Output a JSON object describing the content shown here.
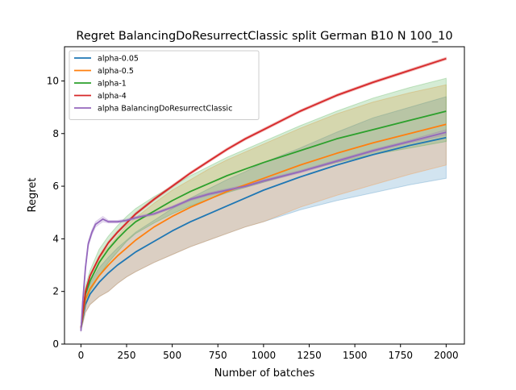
{
  "chart_data": {
    "type": "line",
    "title": "Regret BalancingDoResurrectClassic split German B10 N 100_10",
    "xlabel": "Number of batches",
    "ylabel": "Regret",
    "xlim": [
      -90,
      2100
    ],
    "ylim": [
      0,
      11.3
    ],
    "xticks": [
      0,
      250,
      500,
      750,
      1000,
      1250,
      1500,
      1750,
      2000
    ],
    "yticks": [
      0,
      2,
      4,
      6,
      8,
      10
    ],
    "grid": false,
    "legend_position": "top-left",
    "series": [
      {
        "name": "alpha-0.05",
        "color": "#1f77b4",
        "x": [
          0,
          25,
          50,
          100,
          150,
          200,
          250,
          300,
          400,
          500,
          600,
          700,
          800,
          900,
          1000,
          1200,
          1400,
          1600,
          1800,
          2000
        ],
        "y": [
          0.6,
          1.5,
          1.9,
          2.35,
          2.7,
          3.0,
          3.25,
          3.5,
          3.9,
          4.3,
          4.65,
          4.95,
          5.25,
          5.55,
          5.85,
          6.35,
          6.8,
          7.2,
          7.55,
          7.85
        ],
        "band_lower": [
          0.5,
          1.2,
          1.5,
          1.8,
          2.0,
          2.3,
          2.55,
          2.75,
          3.1,
          3.4,
          3.7,
          3.95,
          4.2,
          4.45,
          4.65,
          5.1,
          5.45,
          5.75,
          6.05,
          6.3
        ],
        "band_upper": [
          0.7,
          1.8,
          2.3,
          2.9,
          3.3,
          3.65,
          3.95,
          4.25,
          4.7,
          5.15,
          5.55,
          5.9,
          6.25,
          6.55,
          6.9,
          7.45,
          8.05,
          8.6,
          9.0,
          9.4
        ]
      },
      {
        "name": "alpha-0.5",
        "color": "#ff7f0e",
        "x": [
          0,
          25,
          50,
          100,
          150,
          200,
          250,
          300,
          400,
          500,
          600,
          700,
          800,
          900,
          1000,
          1200,
          1400,
          1600,
          1800,
          2000
        ],
        "y": [
          0.6,
          1.7,
          2.1,
          2.6,
          3.0,
          3.35,
          3.65,
          3.95,
          4.45,
          4.85,
          5.2,
          5.5,
          5.8,
          6.05,
          6.3,
          6.8,
          7.25,
          7.65,
          8.0,
          8.35
        ],
        "band_lower": [
          0.5,
          1.2,
          1.5,
          1.8,
          2.0,
          2.3,
          2.55,
          2.75,
          3.1,
          3.4,
          3.7,
          3.95,
          4.2,
          4.45,
          4.65,
          5.2,
          5.65,
          6.05,
          6.45,
          6.8
        ],
        "band_upper": [
          0.7,
          2.1,
          2.6,
          3.3,
          3.7,
          4.1,
          4.5,
          4.8,
          5.35,
          5.85,
          6.25,
          6.65,
          7.0,
          7.3,
          7.6,
          8.2,
          8.75,
          9.2,
          9.55,
          9.85
        ]
      },
      {
        "name": "alpha-1",
        "color": "#2ca02c",
        "x": [
          0,
          25,
          50,
          100,
          150,
          200,
          250,
          300,
          400,
          500,
          600,
          700,
          800,
          900,
          1000,
          1200,
          1400,
          1600,
          1800,
          2000
        ],
        "y": [
          0.6,
          1.9,
          2.4,
          3.1,
          3.6,
          4.0,
          4.35,
          4.65,
          5.05,
          5.45,
          5.8,
          6.1,
          6.4,
          6.65,
          6.9,
          7.35,
          7.8,
          8.15,
          8.5,
          8.85
        ],
        "band_lower": [
          0.5,
          1.5,
          2.0,
          2.6,
          3.1,
          3.5,
          3.9,
          4.2,
          4.6,
          4.95,
          5.25,
          5.5,
          5.75,
          5.95,
          6.15,
          6.55,
          6.9,
          7.2,
          7.45,
          7.7
        ],
        "band_upper": [
          0.7,
          2.2,
          2.8,
          3.6,
          4.1,
          4.5,
          4.85,
          5.15,
          5.6,
          6.0,
          6.4,
          6.75,
          7.1,
          7.4,
          7.7,
          8.3,
          8.85,
          9.35,
          9.75,
          10.1
        ]
      },
      {
        "name": "alpha-4",
        "color": "#d62728",
        "x": [
          0,
          25,
          50,
          100,
          150,
          200,
          250,
          300,
          400,
          500,
          600,
          700,
          800,
          900,
          1000,
          1200,
          1400,
          1600,
          1800,
          2000
        ],
        "y": [
          0.6,
          2.0,
          2.6,
          3.3,
          3.85,
          4.25,
          4.6,
          4.95,
          5.5,
          6.0,
          6.5,
          6.95,
          7.4,
          7.8,
          8.15,
          8.85,
          9.45,
          9.95,
          10.4,
          10.85
        ],
        "band_lower": [
          0.55,
          1.95,
          2.55,
          3.25,
          3.8,
          4.2,
          4.55,
          4.9,
          5.45,
          5.95,
          6.45,
          6.9,
          7.35,
          7.75,
          8.1,
          8.8,
          9.4,
          9.9,
          10.35,
          10.8
        ],
        "band_upper": [
          0.65,
          2.05,
          2.65,
          3.35,
          3.9,
          4.3,
          4.65,
          5.0,
          5.55,
          6.05,
          6.55,
          7.0,
          7.45,
          7.85,
          8.2,
          8.9,
          9.5,
          10.0,
          10.45,
          10.9
        ]
      },
      {
        "name": "alpha BalancingDoResurrectClassic",
        "color": "#9467bd",
        "x": [
          0,
          10,
          25,
          40,
          60,
          80,
          100,
          120,
          150,
          200,
          250,
          300,
          400,
          500,
          600,
          700,
          800,
          900,
          1000,
          1200,
          1400,
          1600,
          1800,
          2000
        ],
        "y": [
          0.5,
          1.6,
          2.9,
          3.8,
          4.25,
          4.55,
          4.65,
          4.75,
          4.65,
          4.65,
          4.7,
          4.8,
          4.95,
          5.2,
          5.5,
          5.7,
          5.85,
          6.0,
          6.2,
          6.55,
          6.95,
          7.35,
          7.7,
          8.05
        ],
        "band_lower": [
          0.45,
          1.5,
          2.8,
          3.7,
          4.15,
          4.45,
          4.55,
          4.65,
          4.6,
          4.6,
          4.65,
          4.75,
          4.9,
          5.15,
          5.45,
          5.65,
          5.8,
          5.95,
          6.15,
          6.5,
          6.9,
          7.3,
          7.65,
          7.95
        ],
        "band_upper": [
          0.55,
          1.7,
          3.0,
          3.9,
          4.35,
          4.65,
          4.75,
          4.85,
          4.7,
          4.7,
          4.75,
          4.85,
          5.0,
          5.25,
          5.55,
          5.75,
          5.9,
          6.05,
          6.25,
          6.6,
          7.0,
          7.4,
          7.75,
          8.15
        ]
      }
    ]
  }
}
